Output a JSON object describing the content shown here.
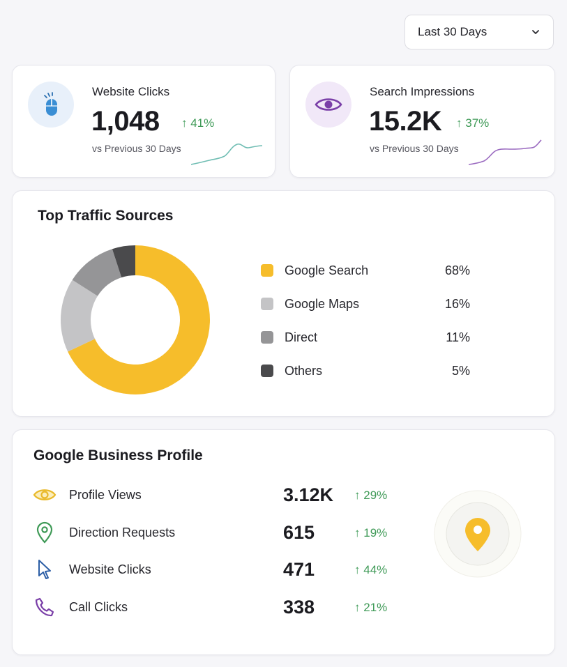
{
  "date_range": {
    "selected": "Last 30 Days"
  },
  "stats": [
    {
      "title": "Website Clicks",
      "value": "1,048",
      "delta": "41%",
      "subtitle": "vs Previous 30 Days",
      "icon": "mouse-icon",
      "accent": "#3a8ed4",
      "spark_color": "#6fbdb3"
    },
    {
      "title": "Search Impressions",
      "value": "15.2K",
      "delta": "37%",
      "subtitle": "vs Previous 30 Days",
      "icon": "eye-icon",
      "accent": "#7a3fa8",
      "spark_color": "#9a6ac0"
    }
  ],
  "traffic": {
    "title": "Top Traffic Sources",
    "chart_data": {
      "type": "pie",
      "categories": [
        "Google Search",
        "Google Maps",
        "Direct",
        "Others"
      ],
      "values": [
        68,
        16,
        11,
        5
      ],
      "labels": [
        "68%",
        "16%",
        "11%",
        "5%"
      ],
      "colors": [
        "#f6bd2b",
        "#c4c4c6",
        "#959597",
        "#4a4a4c"
      ]
    }
  },
  "business": {
    "title": "Google Business Profile",
    "metrics": [
      {
        "label": "Profile Views",
        "value": "3.12K",
        "delta": "29%",
        "icon": "eye-icon",
        "color": "#e9b92a"
      },
      {
        "label": "Direction Requests",
        "value": "615",
        "delta": "19%",
        "icon": "map-pin-icon",
        "color": "#3f9a57"
      },
      {
        "label": "Website Clicks",
        "value": "471",
        "delta": "44%",
        "icon": "cursor-icon",
        "color": "#2d5fa6"
      },
      {
        "label": "Call Clicks",
        "value": "338",
        "delta": "21%",
        "icon": "phone-icon",
        "color": "#7a3fa8"
      }
    ],
    "badge_icon": "location-pin-icon",
    "badge_color": "#f6bd2b"
  }
}
